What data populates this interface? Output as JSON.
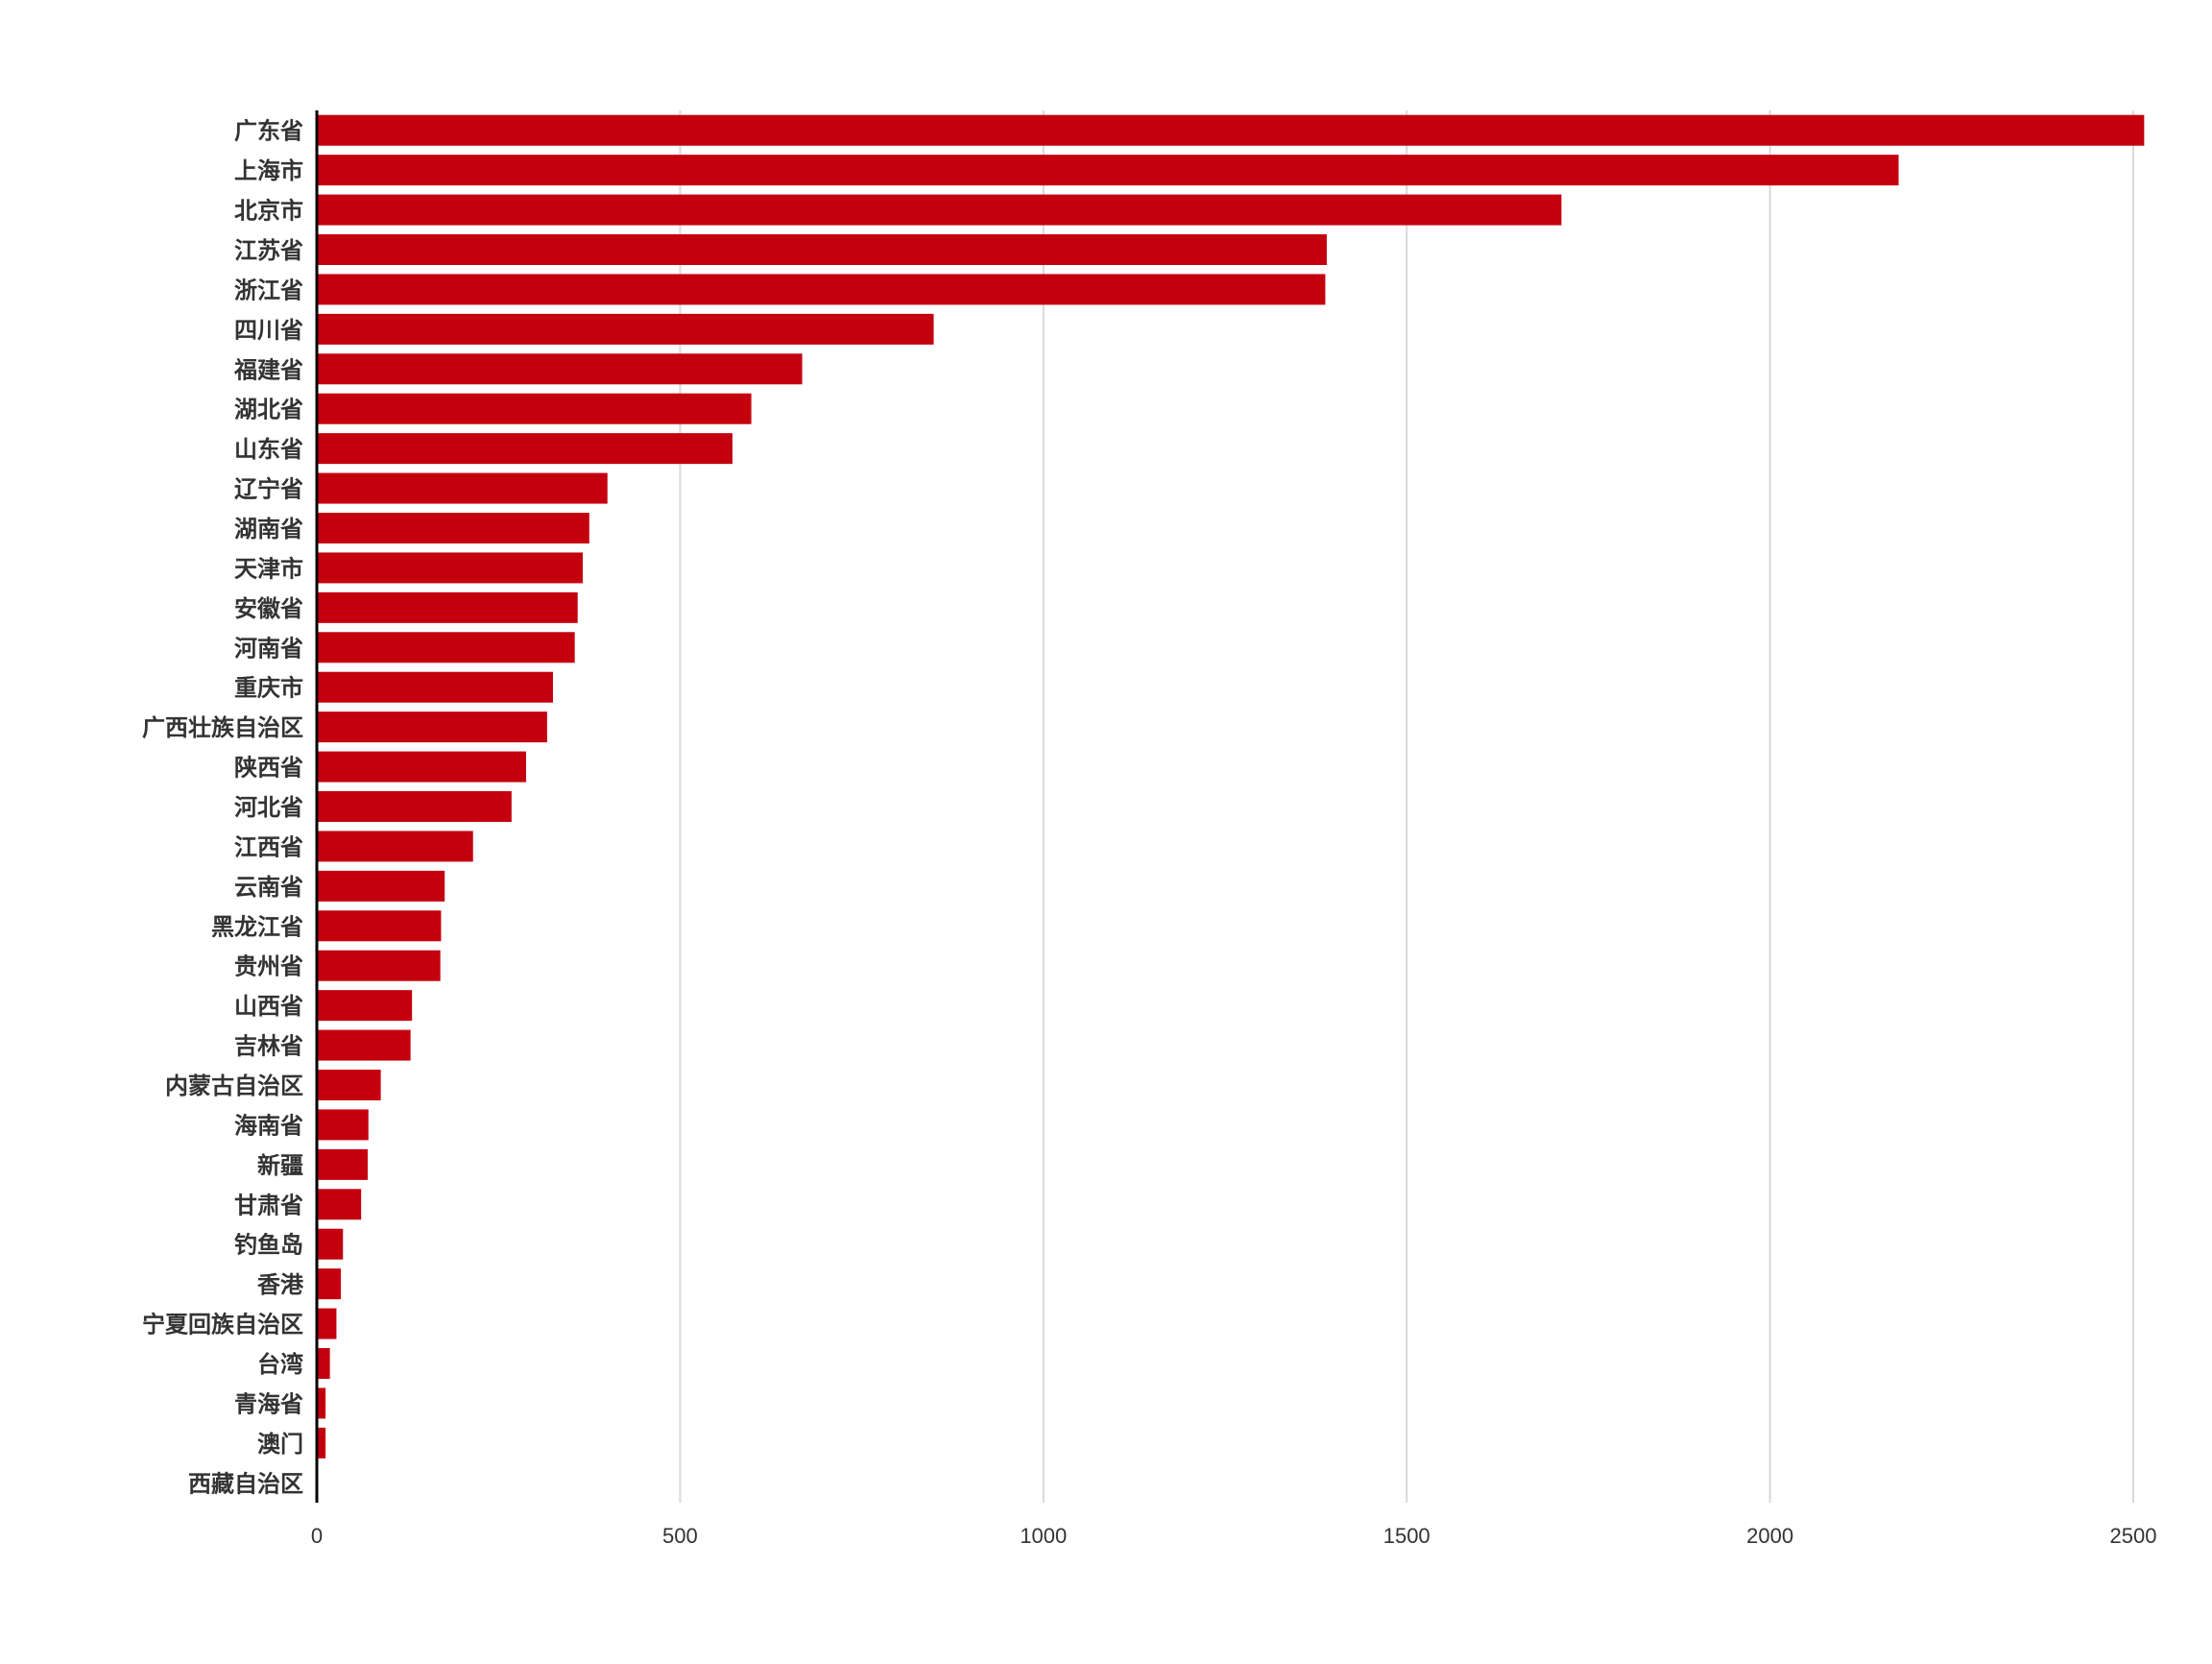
{
  "colors": {
    "bar": "#c4000f",
    "grid": "#d9d9d9",
    "axis": "#000000",
    "text": "#333333"
  },
  "chart_data": {
    "type": "bar",
    "orientation": "horizontal",
    "title": "",
    "xlabel": "",
    "ylabel": "",
    "xlim": [
      0,
      2520
    ],
    "xticks": [
      0,
      500,
      1000,
      1500,
      2000,
      2500
    ],
    "grid": "vertical",
    "legend": "none",
    "categories": [
      "广东省",
      "上海市",
      "北京市",
      "江苏省",
      "浙江省",
      "四川省",
      "福建省",
      "湖北省",
      "山东省",
      "辽宁省",
      "湖南省",
      "天津市",
      "安徽省",
      "河南省",
      "重庆市",
      "广西壮族自治区",
      "陕西省",
      "河北省",
      "江西省",
      "云南省",
      "黑龙江省",
      "贵州省",
      "山西省",
      "吉林省",
      "内蒙古自治区",
      "海南省",
      "新疆",
      "甘肃省",
      "钓鱼岛",
      "香港",
      "宁夏回族自治区",
      "台湾",
      "青海省",
      "澳门",
      "西藏自治区"
    ],
    "values": [
      2515,
      2177,
      1713,
      1390,
      1388,
      849,
      668,
      598,
      572,
      400,
      375,
      366,
      359,
      355,
      325,
      317,
      288,
      268,
      215,
      176,
      171,
      170,
      131,
      129,
      88,
      71,
      70,
      61,
      36,
      33,
      27,
      18,
      12,
      12,
      1
    ]
  }
}
